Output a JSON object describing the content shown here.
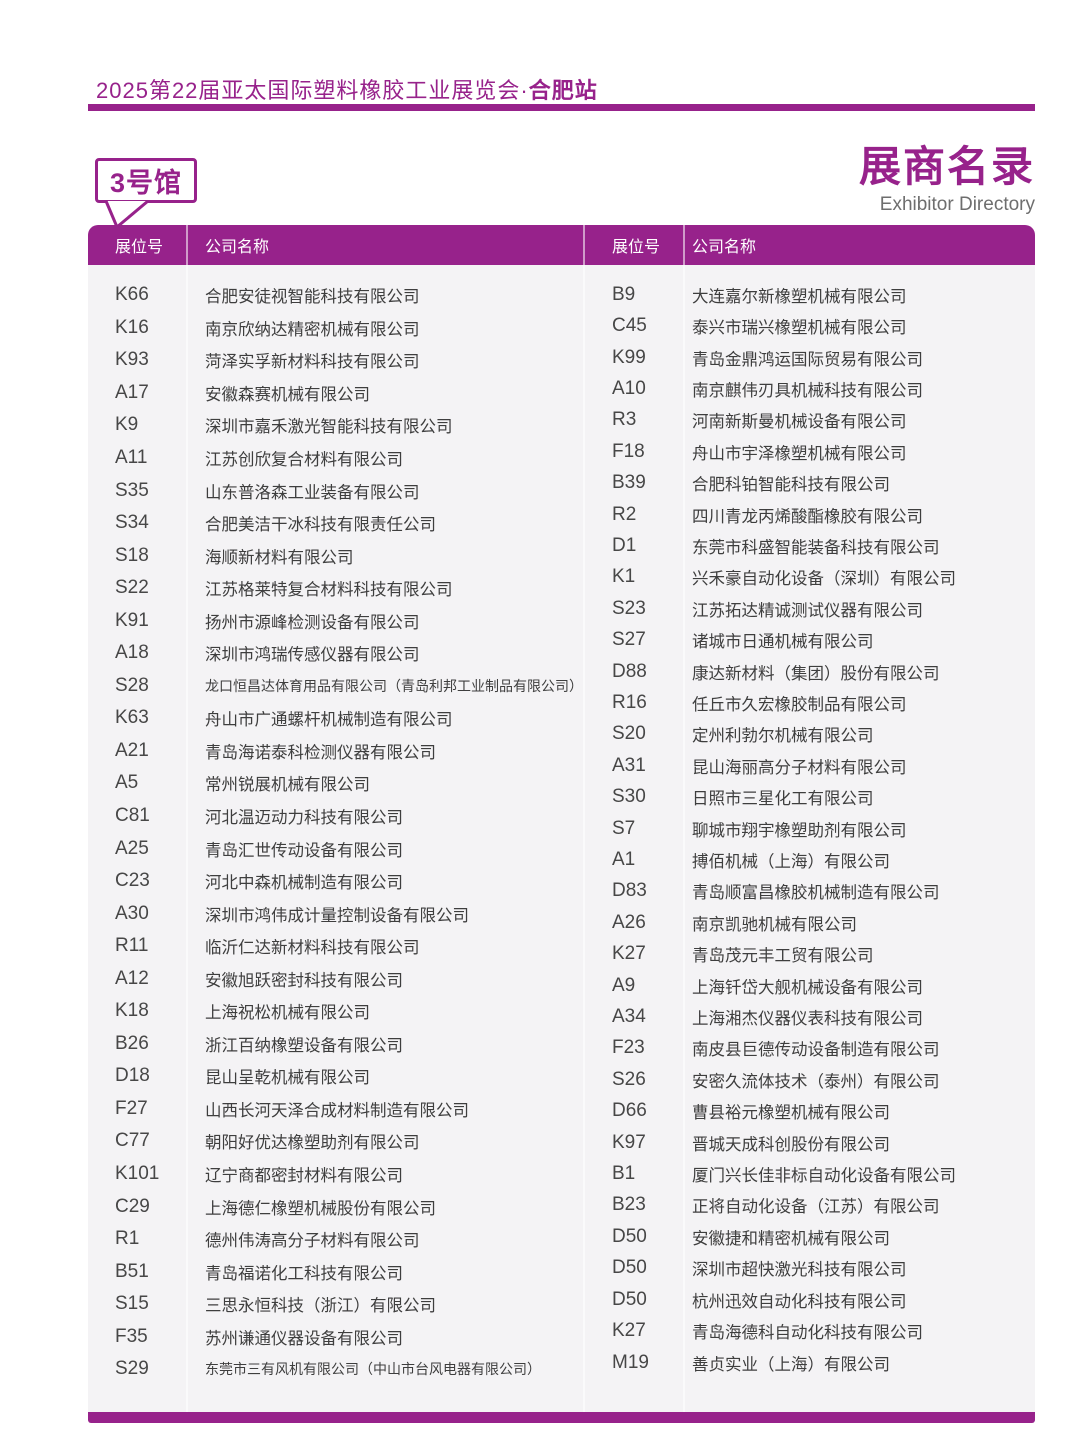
{
  "colors": {
    "accent": "#97228B",
    "body_text": "#3e3e3e",
    "table_bg": "#f4f3f5",
    "subtitle_gray": "#6e6e6e"
  },
  "header": {
    "title_regular": "2025第22届亚太国际塑料橡胶工业展览会·",
    "title_bold": "合肥站"
  },
  "hall": {
    "badge_label": "3号馆"
  },
  "directory": {
    "title_zh": "展商名录",
    "title_en": "Exhibitor Directory"
  },
  "table": {
    "header": {
      "booth": "展位号",
      "company": "公司名称"
    },
    "left_rows": [
      {
        "booth": "K66",
        "company": "合肥安徒视智能科技有限公司"
      },
      {
        "booth": "K16",
        "company": "南京欣纳达精密机械有限公司"
      },
      {
        "booth": "K93",
        "company": "菏泽实孚新材料科技有限公司"
      },
      {
        "booth": "A17",
        "company": "安徽森赛机械有限公司"
      },
      {
        "booth": "K9",
        "company": "深圳市嘉禾激光智能科技有限公司"
      },
      {
        "booth": "A11",
        "company": "江苏创欣复合材料有限公司"
      },
      {
        "booth": "S35",
        "company": "山东普洛森工业装备有限公司"
      },
      {
        "booth": "S34",
        "company": "合肥美洁干冰科技有限责任公司"
      },
      {
        "booth": "S18",
        "company": "海顺新材料有限公司"
      },
      {
        "booth": "S22",
        "company": "江苏格莱特复合材料科技有限公司"
      },
      {
        "booth": "K91",
        "company": "扬州市源峰检测设备有限公司"
      },
      {
        "booth": "A18",
        "company": "深圳市鸿瑞传感仪器有限公司"
      },
      {
        "booth": "S28",
        "company": "龙口恒昌达体育用品有限公司（青岛利邦工业制品有限公司）"
      },
      {
        "booth": "K63",
        "company": "舟山市广通螺杆机械制造有限公司"
      },
      {
        "booth": "A21",
        "company": "青岛海诺泰科检测仪器有限公司"
      },
      {
        "booth": "A5",
        "company": "常州锐展机械有限公司"
      },
      {
        "booth": "C81",
        "company": "河北温迈动力科技有限公司"
      },
      {
        "booth": "A25",
        "company": "青岛汇世传动设备有限公司"
      },
      {
        "booth": "C23",
        "company": "河北中森机械制造有限公司"
      },
      {
        "booth": "A30",
        "company": "深圳市鸿伟成计量控制设备有限公司"
      },
      {
        "booth": "R11",
        "company": "临沂仁达新材料科技有限公司"
      },
      {
        "booth": "A12",
        "company": "安徽旭跃密封科技有限公司"
      },
      {
        "booth": "K18",
        "company": "上海祝松机械有限公司"
      },
      {
        "booth": "B26",
        "company": "浙江百纳橡塑设备有限公司"
      },
      {
        "booth": "D18",
        "company": "昆山呈乾机械有限公司"
      },
      {
        "booth": "F27",
        "company": "山西长河天泽合成材料制造有限公司"
      },
      {
        "booth": "C77",
        "company": "朝阳好优达橡塑助剂有限公司"
      },
      {
        "booth": "K101",
        "company": "辽宁商都密封材料有限公司"
      },
      {
        "booth": "C29",
        "company": "上海德仁橡塑机械股份有限公司"
      },
      {
        "booth": "R1",
        "company": "德州伟涛高分子材料有限公司"
      },
      {
        "booth": "B51",
        "company": "青岛福诺化工科技有限公司"
      },
      {
        "booth": "S15",
        "company": "三思永恒科技（浙江）有限公司"
      },
      {
        "booth": "F35",
        "company": "苏州谦通仪器设备有限公司"
      },
      {
        "booth": "S29",
        "company": "东莞市三有风机有限公司（中山市台风电器有限公司）"
      }
    ],
    "right_rows": [
      {
        "booth": "B9",
        "company": "大连嘉尔新橡塑机械有限公司"
      },
      {
        "booth": "C45",
        "company": "泰兴市瑞兴橡塑机械有限公司"
      },
      {
        "booth": "K99",
        "company": "青岛金鼎鸿运国际贸易有限公司"
      },
      {
        "booth": "A10",
        "company": "南京麒伟刃具机械科技有限公司"
      },
      {
        "booth": "R3",
        "company": "河南新斯曼机械设备有限公司"
      },
      {
        "booth": "F18",
        "company": "舟山市宇泽橡塑机械有限公司"
      },
      {
        "booth": "B39",
        "company": "合肥科铂智能科技有限公司"
      },
      {
        "booth": "R2",
        "company": "四川青龙丙烯酸酯橡胶有限公司"
      },
      {
        "booth": "D1",
        "company": "东莞市科盛智能装备科技有限公司"
      },
      {
        "booth": "K1",
        "company": "兴禾豪自动化设备（深圳）有限公司"
      },
      {
        "booth": "S23",
        "company": "江苏拓达精诚测试仪器有限公司"
      },
      {
        "booth": "S27",
        "company": "诸城市日通机械有限公司"
      },
      {
        "booth": "D88",
        "company": "康达新材料（集团）股份有限公司"
      },
      {
        "booth": "R16",
        "company": "任丘市久宏橡胶制品有限公司"
      },
      {
        "booth": "S20",
        "company": "定州利勃尔机械有限公司"
      },
      {
        "booth": "A31",
        "company": "昆山海丽高分子材料有限公司"
      },
      {
        "booth": "S30",
        "company": "日照市三星化工有限公司"
      },
      {
        "booth": "S7",
        "company": "聊城市翔宇橡塑助剂有限公司"
      },
      {
        "booth": "A1",
        "company": "搏佰机械（上海）有限公司"
      },
      {
        "booth": "D83",
        "company": "青岛顺富昌橡胶机械制造有限公司"
      },
      {
        "booth": "A26",
        "company": "南京凯驰机械有限公司"
      },
      {
        "booth": "K27",
        "company": "青岛茂元丰工贸有限公司"
      },
      {
        "booth": "A9",
        "company": "上海钎岱大舰机械设备有限公司"
      },
      {
        "booth": "A34",
        "company": "上海湘杰仪器仪表科技有限公司"
      },
      {
        "booth": "F23",
        "company": "南皮县巨德传动设备制造有限公司"
      },
      {
        "booth": "S26",
        "company": "安密久流体技术（泰州）有限公司"
      },
      {
        "booth": "D66",
        "company": "曹县裕元橡塑机械有限公司"
      },
      {
        "booth": "K97",
        "company": "晋城天成科创股份有限公司"
      },
      {
        "booth": "B1",
        "company": "厦门兴长佳非标自动化设备有限公司"
      },
      {
        "booth": "B23",
        "company": "正将自动化设备（江苏）有限公司"
      },
      {
        "booth": "D50",
        "company": "安徽捷和精密机械有限公司"
      },
      {
        "booth": "D50",
        "company": "深圳市超快激光科技有限公司"
      },
      {
        "booth": "D50",
        "company": "杭州迅效自动化科技有限公司"
      },
      {
        "booth": "K27",
        "company": "青岛海德科自动化科技有限公司"
      },
      {
        "booth": "M19",
        "company": "善贞实业（上海）有限公司"
      }
    ]
  }
}
